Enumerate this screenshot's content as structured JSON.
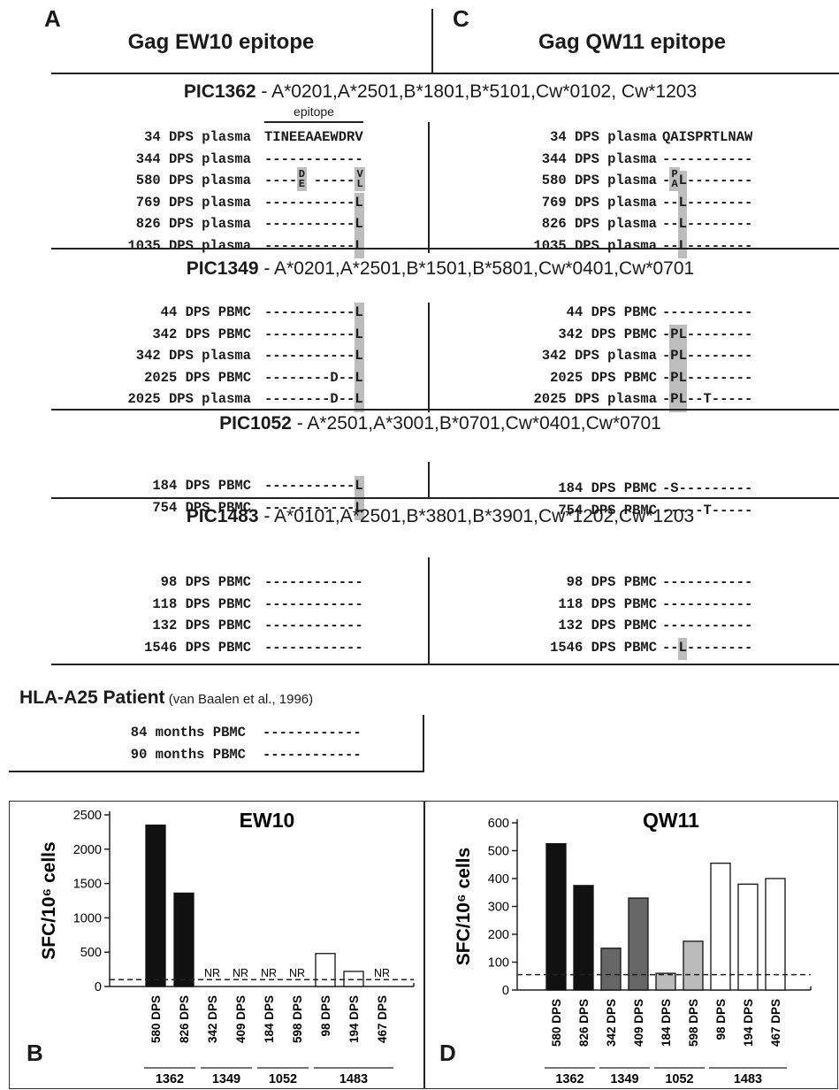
{
  "panels": {
    "a": {
      "letter": "A",
      "title": "Gag EW10 epitope"
    },
    "c": {
      "letter": "C",
      "title": "Gag QW11 epitope"
    },
    "b": {
      "letter": "B"
    },
    "d": {
      "letter": "D"
    }
  },
  "epitope_label": "epitope",
  "patients": [
    {
      "id": "PIC1362",
      "hla": " - A*0201,A*2501,B*1801,B*5101,Cw*0102, Cw*1203",
      "left": [
        {
          "label": "34 DPS plasma",
          "seq": "TINEEAAEWDRV"
        },
        {
          "label": "344 DPS plasma",
          "seq": "------------"
        },
        {
          "label": "580 DPS plasma",
          "seq": "----  -----",
          "stack_top": "D",
          "stack_bottom": "E",
          "tail_top": "V",
          "tail_bottom": "L"
        },
        {
          "label": "769 DPS plasma",
          "seq": "-----------L"
        },
        {
          "label": "826 DPS plasma",
          "seq": "-----------L"
        },
        {
          "label": "1035 DPS plasma",
          "seq": "-----------L"
        }
      ],
      "right": [
        {
          "label": "34 DPS plasma",
          "seq": "QAISPRTLNAW"
        },
        {
          "label": "344 DPS plasma",
          "seq": "-----------"
        },
        {
          "label": "580 DPS plasma",
          "seq": "- L--------",
          "stack_top": "P",
          "stack_bottom": "A"
        },
        {
          "label": "769 DPS plasma",
          "seq": "--L--------"
        },
        {
          "label": "826 DPS plasma",
          "seq": "--L--------"
        },
        {
          "label": "1035 DPS plasma",
          "seq": "--L--------"
        }
      ]
    },
    {
      "id": "PIC1349",
      "hla": " - A*0201,A*2501,B*1501,B*5801,Cw*0401,Cw*0701",
      "left": [
        {
          "label": "44 DPS PBMC",
          "seq": "-----------L"
        },
        {
          "label": "342 DPS PBMC",
          "seq": "-----------L"
        },
        {
          "label": "342 DPS plasma",
          "seq": "-----------L"
        },
        {
          "label": "2025 DPS PBMC",
          "seq": "--------D--L"
        },
        {
          "label": "2025 DPS plasma",
          "seq": "--------D--L"
        }
      ],
      "right": [
        {
          "label": "44 DPS PBMC",
          "seq": "-----------"
        },
        {
          "label": "342 DPS PBMC",
          "seq": "-PL--------"
        },
        {
          "label": "342 DPS plasma",
          "seq": "-PL--------"
        },
        {
          "label": "2025 DPS PBMC",
          "seq": "-PL--------"
        },
        {
          "label": "2025 DPS plasma",
          "seq": "-PL--T-----"
        }
      ]
    },
    {
      "id": "PIC1052",
      "hla": " - A*2501,A*3001,B*0701,Cw*0401,Cw*0701",
      "left": [
        {
          "label": "184 DPS PBMC",
          "seq": "-----------L"
        },
        {
          "label": "754 DPS PBMC",
          "seq": "-----------L"
        }
      ],
      "right": [
        {
          "label": "184 DPS PBMC",
          "seq": "-S---------"
        },
        {
          "label": "754 DPS PBMC",
          "seq": "-----T-----"
        }
      ]
    },
    {
      "id": "PIC1483",
      "hla": " - A*0101,A*2501,B*3801,B*3901,Cw*1202,Cw*1203",
      "left": [
        {
          "label": "98 DPS PBMC",
          "seq": "------------"
        },
        {
          "label": "118 DPS PBMC",
          "seq": "------------"
        },
        {
          "label": "132 DPS PBMC",
          "seq": "------------"
        },
        {
          "label": "1546 DPS PBMC",
          "seq": "------------"
        }
      ],
      "right": [
        {
          "label": "98 DPS PBMC",
          "seq": "-----------"
        },
        {
          "label": "118 DPS PBMC",
          "seq": "-----------"
        },
        {
          "label": "132 DPS PBMC",
          "seq": "-----------"
        },
        {
          "label": "1546 DPS PBMC",
          "seq": "--L--------"
        }
      ]
    }
  ],
  "a25": {
    "title_bold": "HLA-A25 Patient",
    "title_ref": " (van Baalen et al., 1996)",
    "rows": [
      {
        "label": "84 months PBMC",
        "seq": "------------"
      },
      {
        "label": "90 months PBMC",
        "seq": "------------"
      }
    ]
  },
  "chart_data": [
    {
      "type": "bar",
      "title": "EW10",
      "ylabel": "SFC/10⁶ cells",
      "ylim": [
        0,
        2500
      ],
      "yticks": [
        0,
        500,
        1000,
        1500,
        2000,
        2500
      ],
      "threshold": 100,
      "categories": [
        "580 DPS",
        "826 DPS",
        "342 DPS",
        "409 DPS",
        "184 DPS",
        "598 DPS",
        "98 DPS",
        "194 DPS",
        "467 DPS"
      ],
      "groups": [
        {
          "name": "1362",
          "count": 2,
          "color": "#111111"
        },
        {
          "name": "1349",
          "count": 2,
          "color": "#666666"
        },
        {
          "name": "1052",
          "count": 2,
          "color": "#bbbbbb"
        },
        {
          "name": "1483",
          "count": 3,
          "color": "#ffffff"
        }
      ],
      "values": [
        2350,
        1360,
        0,
        0,
        0,
        0,
        480,
        220,
        0
      ],
      "annotations": [
        "",
        "",
        "NR",
        "NR",
        "NR",
        "NR",
        "",
        "",
        "NR"
      ]
    },
    {
      "type": "bar",
      "title": "QW11",
      "ylabel": "SFC/10⁶ cells",
      "ylim": [
        0,
        600
      ],
      "yticks": [
        0,
        100,
        200,
        300,
        400,
        500,
        600
      ],
      "threshold": 55,
      "categories": [
        "580 DPS",
        "826 DPS",
        "342 DPS",
        "409 DPS",
        "184 DPS",
        "598 DPS",
        "98 DPS",
        "194 DPS",
        "467 DPS"
      ],
      "groups": [
        {
          "name": "1362",
          "count": 2,
          "color": "#111111"
        },
        {
          "name": "1349",
          "count": 2,
          "color": "#666666"
        },
        {
          "name": "1052",
          "count": 2,
          "color": "#bbbbbb"
        },
        {
          "name": "1483",
          "count": 3,
          "color": "#ffffff"
        }
      ],
      "values": [
        525,
        375,
        150,
        330,
        60,
        175,
        455,
        380,
        400
      ],
      "annotations": [
        "",
        "",
        "",
        "",
        "",
        "",
        "",
        "",
        ""
      ]
    }
  ]
}
